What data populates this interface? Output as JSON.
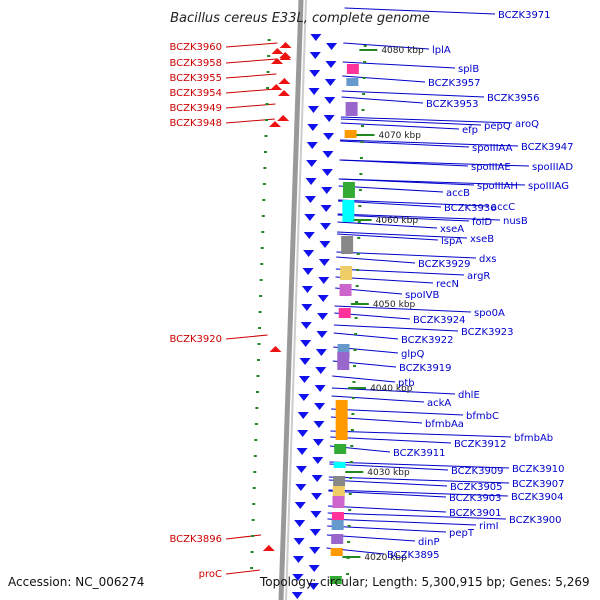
{
  "title": "Bacillus cereus E33L, complete genome",
  "footer": {
    "accession": "Accession: NC_006274",
    "topology": "Topology: circular; Length: 5,300,915 bp; Genes: 5,269"
  },
  "colors": {
    "strand_backbone": "#888888",
    "forward_gene": "#ee1111",
    "reverse_gene": "#1111ee",
    "left_label": "#cc0000",
    "right_label": "#0000cc",
    "tick": "#228822"
  },
  "kbp_marks": [
    "4080 kbp",
    "4070 kbp",
    "4060 kbp",
    "4050 kbp",
    "4040 kbp",
    "4030 kbp",
    "4020 kbp"
  ],
  "left_genes": [
    "BCZK3960",
    "BCZK3958",
    "BCZK3955",
    "BCZK3954",
    "BCZK3949",
    "BCZK3948",
    "BCZK3920",
    "BCZK3896",
    "proC"
  ],
  "right_genes": [
    "BCZK3971",
    "lplA",
    "splB",
    "BCZK3957",
    "BCZK3956",
    "BCZK3953",
    "pepQ",
    "aroQ",
    "efp",
    "spoIIIAA",
    "BCZK3947",
    "spoIIIAE",
    "spoIIIAD",
    "spoIIIAH",
    "spoIIIAG",
    "accB",
    "BCZK3936",
    "accC",
    "folD",
    "nusB",
    "xseA",
    "lspA",
    "xseB",
    "dxs",
    "BCZK3929",
    "argR",
    "recN",
    "spoIVB",
    "spo0A",
    "BCZK3924",
    "BCZK3923",
    "BCZK3922",
    "glpQ",
    "BCZK3919",
    "ptb",
    "dhlE",
    "ackA",
    "bfmbC",
    "bfmbAa",
    "bfmbAb",
    "BCZK3912",
    "BCZK3911",
    "BCZK3909",
    "BCZK3910",
    "BCZK3905",
    "BCZK3907",
    "BCZK3903",
    "BCZK3904",
    "BCZK3901",
    "rimI",
    "BCZK3900",
    "pepT",
    "dinP",
    "BCZK3895"
  ]
}
